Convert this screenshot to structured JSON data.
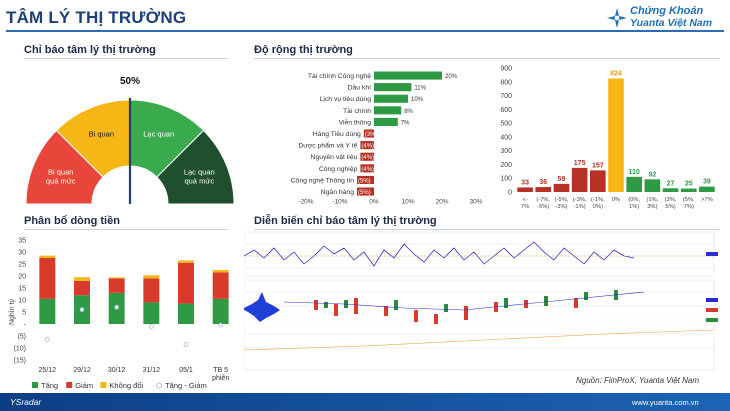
{
  "header": {
    "title": "TÂM LÝ THỊ TRƯỜNG",
    "logo_line1": "Chứng Khoán",
    "logo_line2": "Yuanta Việt Nam",
    "logo_icon": "snowflake-star-icon"
  },
  "footer": {
    "left": "YSradar",
    "right": "www.yuanta.com.vn",
    "source": "Nguồn: FiinProX, Yuanta Việt Nam"
  },
  "sections": {
    "sentiment": "Chỉ báo tâm lý thị trường",
    "breadth": "Độ rộng thị trường",
    "flow": "Phân bổ dòng tiền",
    "evolution": "Diễn biến chỉ báo tâm lý thị trường"
  },
  "chart_data": [
    {
      "type": "gauge",
      "value": 50,
      "value_label": "50%",
      "segments": [
        {
          "label_line1": "Bi quan",
          "label_line2": "quá mức",
          "color": "#e8463a"
        },
        {
          "label_line1": "Bi quan",
          "label_line2": "",
          "color": "#f6b615"
        },
        {
          "label_line1": "Lạc quan",
          "label_line2": "",
          "color": "#3aab4d"
        },
        {
          "label_line1": "Lạc quan",
          "label_line2": "quá mức",
          "color": "#1f4f2c"
        }
      ]
    },
    {
      "type": "bar",
      "orientation": "horizontal",
      "categories": [
        "Tài chính Công nghệ",
        "Dầu khí",
        "Lịch vụ tiêu dùng",
        "Tài chính",
        "Viễn thông",
        "Hàng Tiêu dùng",
        "Dược phẩm và Y tế",
        "Nguyên vật liệu",
        "Công nghiệp",
        "Công nghệ Thông tin",
        "Ngân hàng"
      ],
      "values": [
        20,
        11,
        10,
        8,
        7,
        -3,
        -4,
        -4,
        -4,
        -5,
        -5
      ],
      "value_labels": [
        "20%",
        "11%",
        "10%",
        "8%",
        "7%",
        "(3%)",
        "(4%)",
        "(4%)",
        "(4%)",
        "(5%)",
        "(5%)"
      ],
      "xticks": [
        "-20%",
        "-10%",
        "0%",
        "10%",
        "20%",
        "30%"
      ],
      "xlim": [
        -20,
        30
      ],
      "pos_color": "#2e9b44",
      "neg_color": "#b63227"
    },
    {
      "type": "bar",
      "categories": [
        "<-7%",
        "(-7%, -5%)",
        "(-5%, -3%)",
        "(-3%, -1%)",
        "(-1%, 0%)",
        "0%",
        "(0%, 1%)",
        "(1%, 3%)",
        "(3%, 5%)",
        "(5%, 7%)",
        ">7%"
      ],
      "category_labels_line1": [
        "<-",
        "(-7%,",
        "(-5%,",
        "(-3%,",
        "(-1%,",
        "0%",
        "(0%,",
        "(1%,",
        "(3%,",
        "(5%,",
        ">7%"
      ],
      "category_labels_line2": [
        "7%",
        "-5%)",
        "-3%)",
        "-1%)",
        "0%)",
        "",
        "1%)",
        "3%)",
        "5%)",
        "7%)",
        ""
      ],
      "values": [
        33,
        36,
        59,
        175,
        157,
        824,
        110,
        92,
        27,
        25,
        39
      ],
      "colors": [
        "#b63227",
        "#b63227",
        "#b63227",
        "#b63227",
        "#b63227",
        "#f6b615",
        "#2e9b44",
        "#2e9b44",
        "#2e9b44",
        "#2e9b44",
        "#2e9b44"
      ],
      "yticks": [
        0,
        100,
        200,
        300,
        400,
        500,
        600,
        700,
        800,
        900
      ],
      "ylim": [
        0,
        900
      ]
    },
    {
      "type": "bar",
      "stacked": true,
      "categories": [
        "25/12",
        "29/12",
        "30/12",
        "31/12",
        "05/1",
        "TB 5 phiên"
      ],
      "category_labels_line1": [
        "25/12",
        "29/12",
        "30/12",
        "31/12",
        "05/1",
        "TB 5"
      ],
      "category_labels_line2": [
        "",
        "",
        "",
        "",
        "",
        "phiên"
      ],
      "ylabel": "Nghìn tỷ",
      "ylim": [
        -15,
        35
      ],
      "yticks": [
        "35",
        "30",
        "25",
        "20",
        "15",
        "10",
        "5",
        "-",
        "(5)",
        "(10)",
        "(15)"
      ],
      "series": [
        {
          "name": "Tăng",
          "values": [
            10.5,
            12,
            13,
            9,
            8.5,
            10.5
          ],
          "color": "#2e9b44"
        },
        {
          "name": "Giảm",
          "values": [
            17,
            6,
            6,
            10,
            17,
            11
          ],
          "color": "#d93a2b"
        },
        {
          "name": "Không đổi",
          "values": [
            1,
            1.5,
            0.4,
            1.3,
            1,
            1
          ],
          "color": "#f6b615"
        },
        {
          "name": "Tăng - Giảm",
          "values": [
            -6.5,
            6,
            7,
            -1,
            -8.5,
            -0.5
          ],
          "color": "#ffffff"
        }
      ]
    }
  ]
}
